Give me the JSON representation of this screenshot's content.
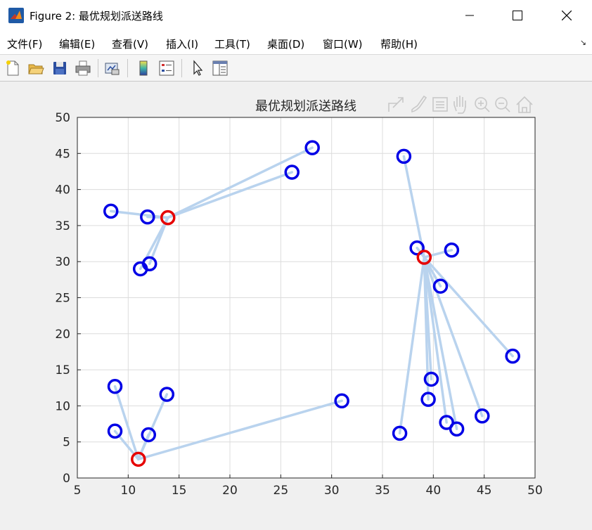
{
  "window": {
    "title": "Figure 2: 最优规划派送路线"
  },
  "menu": {
    "items": [
      "文件(F)",
      "编辑(E)",
      "查看(V)",
      "插入(I)",
      "工具(T)",
      "桌面(D)",
      "窗口(W)",
      "帮助(H)"
    ]
  },
  "toolbar": {
    "icons": [
      "new-figure-icon",
      "open-file-icon",
      "save-icon",
      "print-icon",
      "link-plot-icon",
      "insert-colorbar-icon",
      "insert-legend-icon",
      "edit-plot-arrow-icon",
      "property-inspector-icon"
    ]
  },
  "axes_toolbar": {
    "icons": [
      "export-icon",
      "brush-icon",
      "datatip-icon",
      "pan-icon",
      "zoom-in-icon",
      "zoom-out-icon",
      "home-icon"
    ]
  },
  "chart_data": {
    "type": "scatter",
    "title": "最优规划派送路线",
    "xlabel": "",
    "ylabel": "",
    "xlim": [
      5,
      50
    ],
    "ylim": [
      0,
      50
    ],
    "xticks": [
      5,
      10,
      15,
      20,
      25,
      30,
      35,
      40,
      45,
      50
    ],
    "yticks": [
      0,
      5,
      10,
      15,
      20,
      25,
      30,
      35,
      40,
      45,
      50
    ],
    "grid": true,
    "line_color": "#b9d3ee",
    "customer_color": "#0000e6",
    "center_color": "#e60000",
    "centers": [
      {
        "x": 13.9,
        "y": 36.1
      },
      {
        "x": 39.1,
        "y": 30.6
      },
      {
        "x": 11.0,
        "y": 2.6
      }
    ],
    "customers": [
      {
        "x": 8.3,
        "y": 37.0,
        "center": 0
      },
      {
        "x": 11.9,
        "y": 36.2,
        "center": 0
      },
      {
        "x": 28.1,
        "y": 45.8,
        "center": 0
      },
      {
        "x": 26.1,
        "y": 42.4,
        "center": 0
      },
      {
        "x": 12.1,
        "y": 29.7,
        "center": 0
      },
      {
        "x": 11.2,
        "y": 29.0,
        "center": 0
      },
      {
        "x": 37.1,
        "y": 44.6,
        "center": 1
      },
      {
        "x": 38.4,
        "y": 31.9,
        "center": 1
      },
      {
        "x": 41.8,
        "y": 31.6,
        "center": 1
      },
      {
        "x": 40.7,
        "y": 26.6,
        "center": 1
      },
      {
        "x": 47.8,
        "y": 16.9,
        "center": 1
      },
      {
        "x": 39.8,
        "y": 13.7,
        "center": 1
      },
      {
        "x": 39.5,
        "y": 10.9,
        "center": 1
      },
      {
        "x": 44.8,
        "y": 8.6,
        "center": 1
      },
      {
        "x": 41.3,
        "y": 7.7,
        "center": 1
      },
      {
        "x": 42.3,
        "y": 6.8,
        "center": 1
      },
      {
        "x": 36.7,
        "y": 6.2,
        "center": 1
      },
      {
        "x": 8.7,
        "y": 12.7,
        "center": 2
      },
      {
        "x": 13.8,
        "y": 11.6,
        "center": 2
      },
      {
        "x": 31.0,
        "y": 10.7,
        "center": 2
      },
      {
        "x": 8.7,
        "y": 6.5,
        "center": 2
      },
      {
        "x": 12.0,
        "y": 6.0,
        "center": 2
      }
    ]
  }
}
